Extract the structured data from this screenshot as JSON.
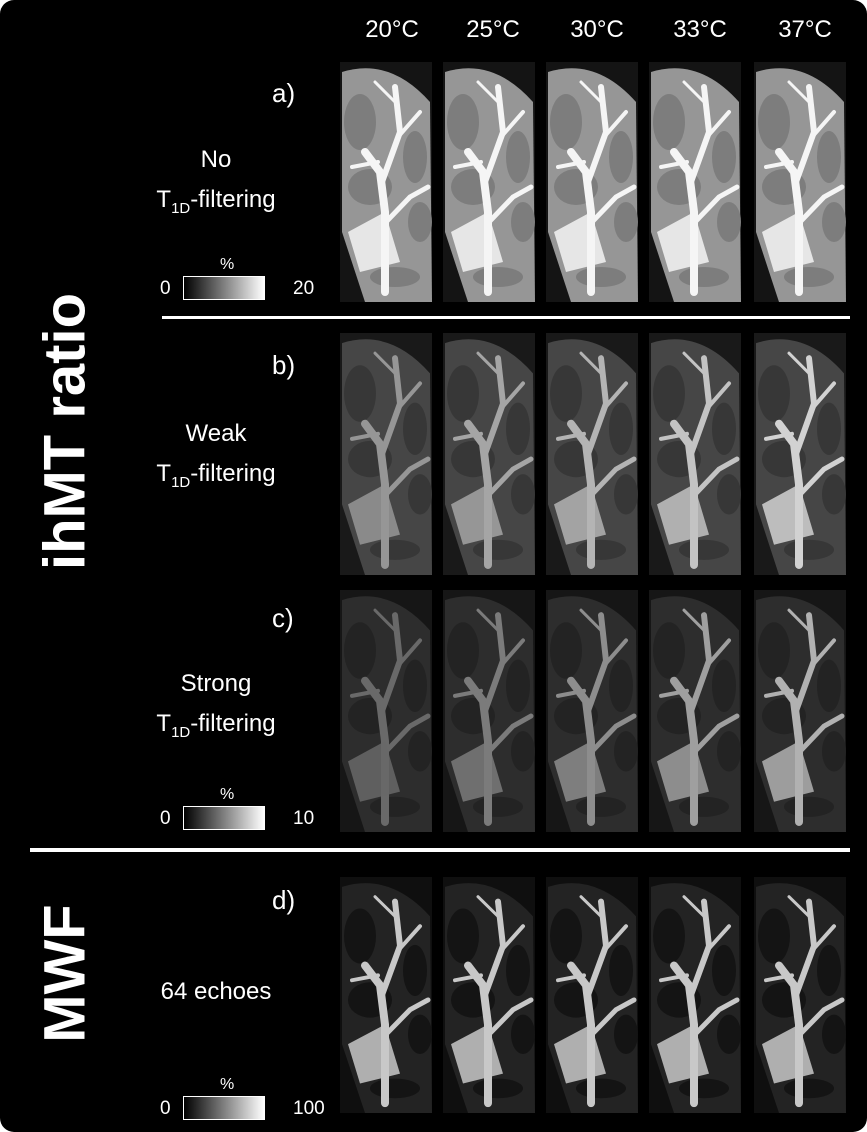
{
  "column_headers": [
    "20°C",
    "25°C",
    "30°C",
    "33°C",
    "37°C"
  ],
  "group_labels": {
    "ihmt": "ihMT ratio",
    "mwf": "MWF"
  },
  "rows": [
    {
      "letter": "a)",
      "line1": "No",
      "line2_main": "T",
      "line2_sub": "1D",
      "line2_rest": "-filtering"
    },
    {
      "letter": "b)",
      "line1": "Weak",
      "line2_main": "T",
      "line2_sub": "1D",
      "line2_rest": "-filtering"
    },
    {
      "letter": "c)",
      "line1": "Strong",
      "line2_main": "T",
      "line2_sub": "1D",
      "line2_rest": "-filtering"
    },
    {
      "letter": "d)",
      "line1": "64 echoes"
    }
  ],
  "colorbars": [
    {
      "min": "0",
      "max": "20",
      "unit": "%"
    },
    {
      "min": "0",
      "max": "10",
      "unit": "%"
    },
    {
      "min": "0",
      "max": "100",
      "unit": "%"
    }
  ],
  "colors": {
    "background": "#000000",
    "text": "#ffffff"
  }
}
